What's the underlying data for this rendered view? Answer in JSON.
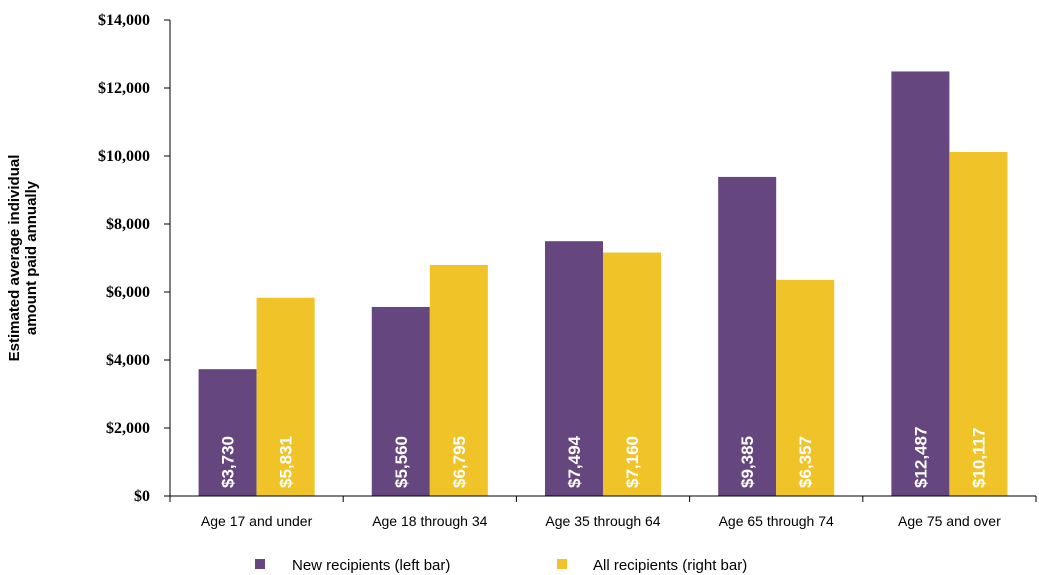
{
  "chart_data": {
    "type": "bar",
    "categories": [
      "Age 17 and under",
      "Age 18 through 34",
      "Age 35 through 64",
      "Age 65 through 74",
      "Age 75 and over"
    ],
    "series": [
      {
        "name": "New recipients (left bar)",
        "color": "#66467f",
        "values": [
          3730,
          5560,
          7494,
          9385,
          12487
        ],
        "labels": [
          "$3,730",
          "$5,560",
          "$7,494",
          "$9,385",
          "$12,487"
        ]
      },
      {
        "name": "All recipients (right bar)",
        "color": "#f0c428",
        "values": [
          5831,
          6795,
          7160,
          6357,
          10117
        ],
        "labels": [
          "$5,831",
          "$6,795",
          "$7,160",
          "$6,357",
          "$10,117"
        ]
      }
    ],
    "ylabel_lines": [
      "Estimated average individual",
      "amount paid annually"
    ],
    "ylim": [
      0,
      14000
    ],
    "yticks": [
      0,
      2000,
      4000,
      6000,
      8000,
      10000,
      12000,
      14000
    ],
    "ytick_labels": [
      "$0",
      "$2,000",
      "$4,000",
      "$6,000",
      "$8,000",
      "$10,000",
      "$12,000",
      "$14,000"
    ],
    "grid": false,
    "legend_position": "bottom"
  }
}
